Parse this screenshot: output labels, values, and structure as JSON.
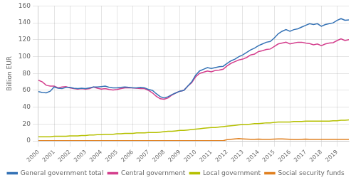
{
  "chart_data": {
    "type": "line",
    "y_label": "Billion EUR",
    "x": [
      2000,
      2000.25,
      2000.5,
      2000.75,
      2001,
      2001.25,
      2001.5,
      2001.75,
      2002,
      2002.25,
      2002.5,
      2002.75,
      2003,
      2003.25,
      2003.5,
      2003.75,
      2004,
      2004.25,
      2004.5,
      2004.75,
      2005,
      2005.25,
      2005.5,
      2005.75,
      2006,
      2006.25,
      2006.5,
      2006.75,
      2007,
      2007.25,
      2007.5,
      2007.75,
      2008,
      2008.25,
      2008.5,
      2008.75,
      2009,
      2009.25,
      2009.5,
      2009.75,
      2010,
      2010.25,
      2010.5,
      2010.75,
      2011,
      2011.25,
      2011.5,
      2011.75,
      2012,
      2012.25,
      2012.5,
      2012.75,
      2013,
      2013.25,
      2013.5,
      2013.75,
      2014,
      2014.25,
      2014.5,
      2014.75,
      2015,
      2015.25,
      2015.5,
      2015.75,
      2016,
      2016.25,
      2016.5,
      2016.75,
      2017,
      2017.25,
      2017.5,
      2017.75,
      2018,
      2018.25,
      2018.5,
      2018.75,
      2019,
      2019.25,
      2019.5,
      2019.75
    ],
    "series": [
      {
        "name": "General government total",
        "color": "#3472b5",
        "values": [
          58.5,
          57.5,
          57.0,
          59.0,
          64.0,
          62.5,
          62.0,
          63.5,
          63.5,
          62.5,
          62.0,
          62.5,
          62.0,
          63.0,
          64.0,
          64.0,
          64.5,
          65.0,
          63.5,
          63.0,
          63.0,
          63.5,
          64.0,
          63.5,
          63.0,
          63.0,
          63.5,
          63.0,
          61.0,
          60.0,
          56.0,
          52.5,
          51.0,
          52.5,
          55.0,
          57.0,
          59.0,
          60.0,
          65.0,
          70.0,
          78.0,
          83.0,
          85.0,
          87.0,
          86.0,
          87.0,
          88.0,
          88.5,
          92.0,
          95.0,
          97.0,
          100.0,
          102.0,
          105.0,
          108.0,
          110.0,
          113.0,
          115.0,
          117.0,
          118.0,
          122.0,
          127.0,
          130.0,
          132.0,
          130.0,
          132.0,
          133.0,
          135.0,
          137.0,
          139.0,
          138.0,
          139.0,
          136.0,
          138.0,
          139.0,
          140.0,
          143.0,
          145.0,
          143.0,
          143.5
        ]
      },
      {
        "name": "Central government",
        "color": "#d43f8d",
        "values": [
          72.0,
          70.0,
          66.0,
          65.0,
          65.0,
          63.0,
          64.0,
          64.5,
          63.0,
          62.0,
          61.5,
          62.0,
          61.5,
          62.0,
          64.0,
          62.5,
          61.5,
          62.0,
          61.0,
          60.5,
          61.0,
          62.0,
          63.0,
          63.0,
          63.0,
          62.5,
          62.0,
          62.0,
          60.0,
          57.0,
          53.0,
          50.0,
          49.5,
          51.0,
          54.5,
          57.0,
          59.0,
          60.0,
          65.0,
          69.0,
          76.0,
          80.0,
          81.5,
          83.0,
          82.0,
          83.5,
          84.0,
          85.0,
          89.0,
          92.0,
          94.0,
          96.0,
          97.0,
          99.0,
          102.0,
          103.0,
          106.0,
          107.0,
          108.5,
          109.0,
          112.0,
          115.0,
          116.0,
          117.0,
          115.0,
          116.0,
          117.0,
          117.0,
          116.0,
          115.5,
          114.0,
          115.0,
          113.0,
          115.0,
          116.0,
          116.5,
          119.0,
          121.0,
          119.0,
          120.0
        ]
      },
      {
        "name": "Local government",
        "color": "#b5c000",
        "values": [
          5.0,
          5.0,
          5.0,
          5.0,
          5.5,
          5.5,
          5.5,
          5.5,
          6.0,
          6.0,
          6.0,
          6.5,
          6.5,
          7.0,
          7.0,
          7.5,
          7.5,
          8.0,
          8.0,
          8.0,
          8.5,
          8.5,
          9.0,
          9.0,
          9.0,
          9.5,
          9.5,
          9.5,
          10.0,
          10.0,
          10.0,
          10.5,
          11.0,
          11.5,
          11.5,
          12.0,
          12.5,
          12.5,
          13.0,
          13.5,
          14.0,
          14.5,
          15.0,
          15.5,
          16.0,
          16.0,
          16.5,
          17.0,
          17.5,
          18.0,
          18.5,
          19.0,
          19.5,
          19.5,
          20.0,
          20.5,
          20.5,
          21.0,
          21.5,
          21.5,
          22.0,
          22.5,
          22.5,
          22.5,
          22.5,
          23.0,
          23.0,
          23.0,
          23.5,
          23.5,
          23.5,
          23.5,
          23.5,
          23.5,
          23.5,
          24.0,
          24.0,
          24.5,
          24.5,
          25.0
        ]
      },
      {
        "name": "Social security funds",
        "color": "#e08020",
        "values": [
          0.3,
          0.3,
          0.3,
          0.3,
          0.3,
          0.3,
          0.3,
          0.3,
          0.3,
          0.3,
          0.3,
          0.3,
          0.3,
          0.3,
          0.3,
          0.3,
          0.3,
          0.3,
          0.3,
          0.3,
          0.3,
          0.3,
          0.3,
          0.3,
          0.3,
          0.3,
          0.3,
          0.3,
          0.3,
          0.3,
          0.3,
          0.3,
          0.3,
          0.3,
          0.3,
          0.3,
          0.3,
          0.3,
          0.3,
          0.3,
          0.3,
          0.3,
          0.3,
          0.3,
          0.3,
          0.3,
          0.3,
          0.3,
          1.5,
          2.0,
          2.5,
          2.8,
          2.5,
          2.2,
          2.0,
          2.0,
          2.2,
          2.0,
          2.0,
          2.0,
          2.2,
          2.5,
          2.5,
          2.3,
          2.0,
          1.8,
          1.8,
          2.0,
          2.2,
          2.0,
          2.0,
          2.0,
          2.0,
          2.0,
          2.0,
          2.0,
          2.0,
          2.0,
          2.0,
          2.0
        ]
      }
    ],
    "xlim": [
      2000,
      2019.75
    ],
    "xticks": [
      2000,
      2001,
      2002,
      2003,
      2004,
      2005,
      2006,
      2007,
      2008,
      2009,
      2010,
      2011,
      2012,
      2013,
      2014,
      2015,
      2016,
      2017,
      2018,
      2019
    ],
    "ylim": [
      0,
      160
    ],
    "yticks": [
      0,
      20,
      40,
      60,
      80,
      100,
      120,
      140,
      160
    ],
    "grid": true,
    "legend": "bottom"
  }
}
